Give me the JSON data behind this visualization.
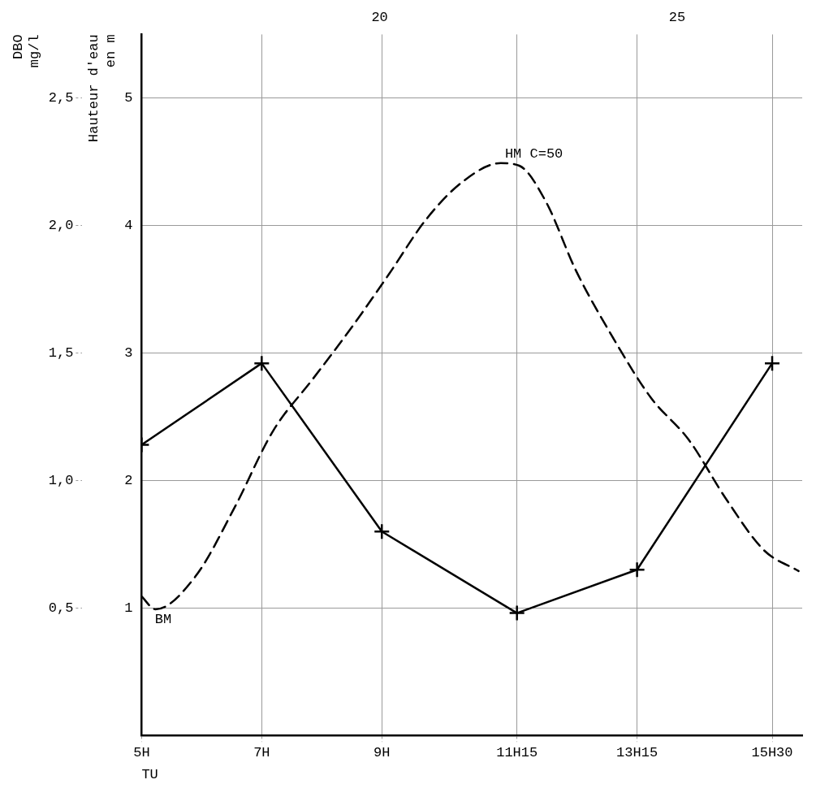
{
  "chart_data": {
    "type": "line",
    "xlabel": "TU",
    "ylabel": "DBO\nmg/l",
    "y2label": "Hauteur d'eau\nen m",
    "xlim": [
      5,
      16
    ],
    "xticks": [
      {
        "value": 5,
        "label": "5H"
      },
      {
        "value": 7,
        "label": "7H"
      },
      {
        "value": 9,
        "label": "9H"
      },
      {
        "value": 11.25,
        "label": "11H15"
      },
      {
        "value": 13.25,
        "label": "13H15"
      },
      {
        "value": 15.5,
        "label": "15H30"
      }
    ],
    "x2lim": [
      16,
      27.1
    ],
    "x2ticks": [
      20,
      25
    ],
    "ylim": [
      0,
      2.75
    ],
    "yticks": [
      {
        "value": 0.5,
        "label": "0,5"
      },
      {
        "value": 1,
        "label": "1,0"
      },
      {
        "value": 1.5,
        "label": "1,5"
      },
      {
        "value": 2,
        "label": "2,0"
      },
      {
        "value": 2.5,
        "label": "2,5"
      }
    ],
    "y2lim": [
      0,
      5.5
    ],
    "y2ticks": [
      1,
      2,
      3,
      4,
      5
    ],
    "series": [
      {
        "color": "#000000",
        "marker": "cross",
        "line_style": "solid",
        "x": [
          5,
          7,
          9,
          11.25,
          13.25,
          15.5
        ],
        "values": [
          1.14,
          1.46,
          0.8,
          0.48,
          0.65,
          1.46
        ]
      },
      {
        "color": "#000000",
        "marker": "none",
        "line_style": "dashed",
        "axis": "y2",
        "x": [
          5,
          5.23,
          5.9,
          6.55,
          7.19,
          7.84,
          8.48,
          9.12,
          9.74,
          10.36,
          10.98,
          11.29,
          11.73,
          12.23,
          12.85,
          13.48,
          14.11,
          14.74,
          15.37,
          15.94
        ],
        "values": [
          1.09,
          0.99,
          1.25,
          1.79,
          2.39,
          2.79,
          3.19,
          3.62,
          4.05,
          4.35,
          4.49,
          4.47,
          4.19,
          3.65,
          3.12,
          2.65,
          2.32,
          1.85,
          1.45,
          1.29
        ]
      }
    ],
    "annotations": [
      "HM C=50",
      "BM"
    ],
    "grid": true,
    "legend": false
  }
}
